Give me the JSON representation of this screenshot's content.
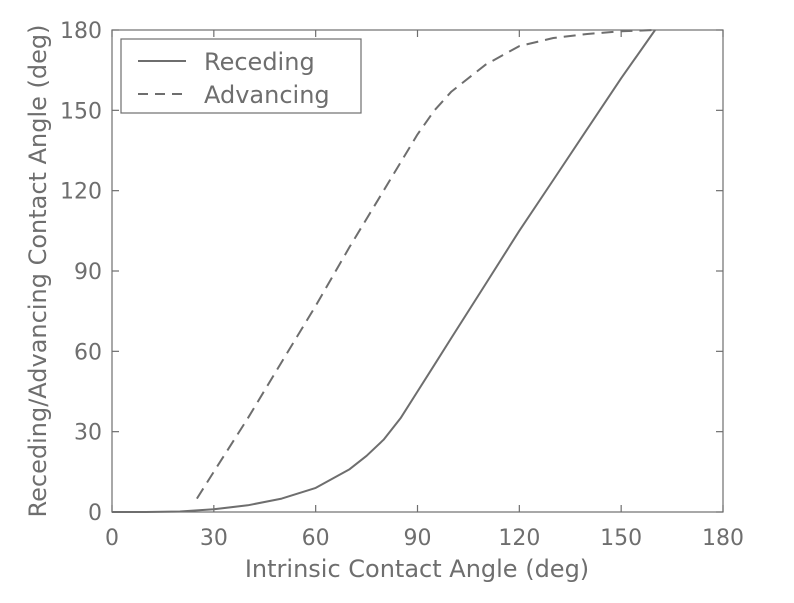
{
  "chart_data": {
    "type": "line",
    "title": "",
    "xlabel": "Intrinsic Contact Angle (deg)",
    "ylabel": "Receding/Advancing Contact Angle (deg)",
    "xlim": [
      0,
      180
    ],
    "ylim": [
      0,
      180
    ],
    "xticks": [
      0,
      30,
      60,
      90,
      120,
      150,
      180
    ],
    "yticks": [
      0,
      30,
      60,
      90,
      120,
      150,
      180
    ],
    "grid": false,
    "legend_position": "top-left",
    "color": "#6e6e6e",
    "series": [
      {
        "name": "Receding",
        "style": "solid",
        "x": [
          0,
          10,
          20,
          30,
          40,
          50,
          60,
          70,
          75,
          80,
          85,
          90,
          95,
          100,
          110,
          120,
          130,
          140,
          150,
          160
        ],
        "y": [
          0,
          0,
          0.2,
          1,
          2.5,
          5,
          9,
          16,
          21,
          27,
          35,
          45,
          55,
          65,
          85,
          105,
          124,
          143,
          162,
          180
        ]
      },
      {
        "name": "Advancing",
        "style": "dashed",
        "x": [
          25,
          30,
          40,
          50,
          60,
          70,
          80,
          90,
          95,
          100,
          110,
          120,
          130,
          140,
          150,
          160
        ],
        "y": [
          5,
          15,
          35,
          56,
          77,
          99,
          120,
          141,
          150,
          157,
          167,
          174,
          177,
          178.5,
          179.5,
          180
        ]
      }
    ]
  }
}
